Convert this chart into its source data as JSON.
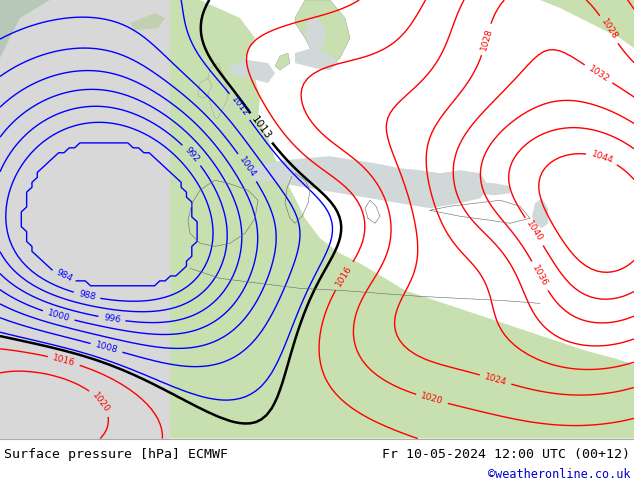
{
  "title_left": "Surface pressure [hPa] ECMWF",
  "title_right": "Fr 10-05-2024 12:00 UTC (00+12)",
  "credit": "©weatheronline.co.uk",
  "bg_color": "#ffffff",
  "map_ocean": "#d0d8d0",
  "map_land_light": "#c8e0b0",
  "map_land_dark": "#b0c890",
  "footer_bg": "#f0f0f0",
  "footer_text_color": "#000000",
  "credit_color": "#0000cc",
  "contour_blue": "#0000ff",
  "contour_red": "#ff0000",
  "contour_black": "#000000",
  "figsize": [
    6.34,
    4.9
  ],
  "dpi": 100
}
